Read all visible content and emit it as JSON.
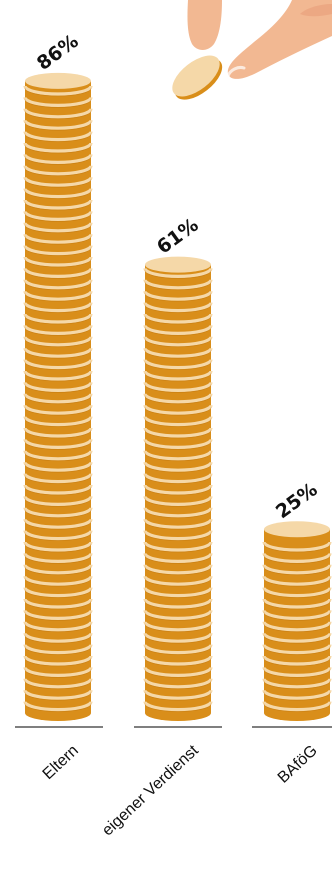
{
  "chart_data": {
    "type": "bar",
    "title": "",
    "xlabel": "",
    "ylabel": "",
    "ylim": [
      0,
      100
    ],
    "categories": [
      "Eltern",
      "eigener Verdienst",
      "BAföG"
    ],
    "values": [
      86,
      61,
      25
    ],
    "value_labels": [
      "86%",
      "61%",
      "25%"
    ],
    "colors": {
      "coin_face": "#f5d8a8",
      "coin_side": "#d98e1a",
      "coin_edge": "#b96f0c",
      "skin": "#f2b892",
      "skin_shadow": "#e89b77",
      "axis": "#333333",
      "text": "#111111"
    },
    "decoration": {
      "hand_icon": "hand-holding-coin",
      "coin_icon": "coin"
    }
  }
}
